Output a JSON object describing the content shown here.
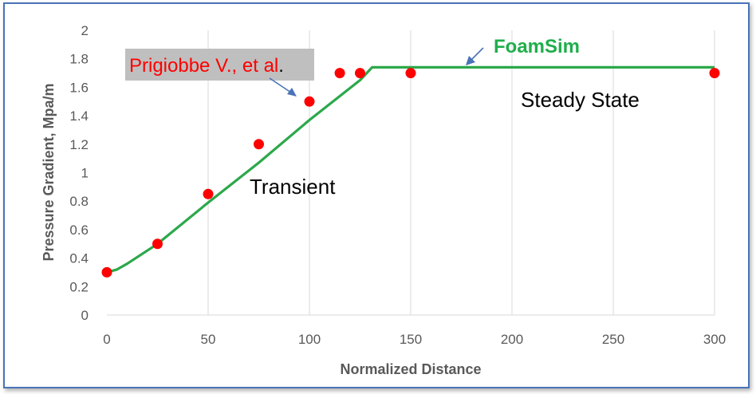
{
  "chart_data": {
    "type": "scatter",
    "xlabel": "Normalized Distance",
    "ylabel": "Pressure Gradient, Mpa/m",
    "xlim": [
      0,
      300
    ],
    "ylim": [
      0,
      2
    ],
    "x_ticks": [
      "0",
      "50",
      "100",
      "150",
      "200",
      "250",
      "300"
    ],
    "y_ticks": [
      "0",
      "0.2",
      "0.4",
      "0.6",
      "0.8",
      "1",
      "1.2",
      "1.4",
      "1.6",
      "1.8",
      "2"
    ],
    "grid": "vertical",
    "series": [
      {
        "name": "FoamSim",
        "style": "line",
        "color": "#2ca84a",
        "points": [
          [
            0,
            0.3
          ],
          [
            5,
            0.32
          ],
          [
            10,
            0.36
          ],
          [
            25,
            0.5
          ],
          [
            50,
            0.79
          ],
          [
            75,
            1.07
          ],
          [
            100,
            1.37
          ],
          [
            125,
            1.65
          ],
          [
            131,
            1.74
          ],
          [
            300,
            1.74
          ]
        ]
      },
      {
        "name": "Prigiobbe V., et al.",
        "style": "markers",
        "color": "#ff0000",
        "points": [
          [
            0,
            0.3
          ],
          [
            25,
            0.5
          ],
          [
            50,
            0.85
          ],
          [
            75,
            1.2
          ],
          [
            100,
            1.5
          ],
          [
            115,
            1.7
          ],
          [
            125,
            1.7
          ],
          [
            150,
            1.7
          ],
          [
            300,
            1.7
          ]
        ]
      }
    ],
    "annotations": {
      "transient": "Transient",
      "steady_state": "Steady State",
      "foamsim": "FoamSim",
      "prigiobbe": "Prigiobbe V., et al",
      "prigiobbe_period": "."
    }
  }
}
